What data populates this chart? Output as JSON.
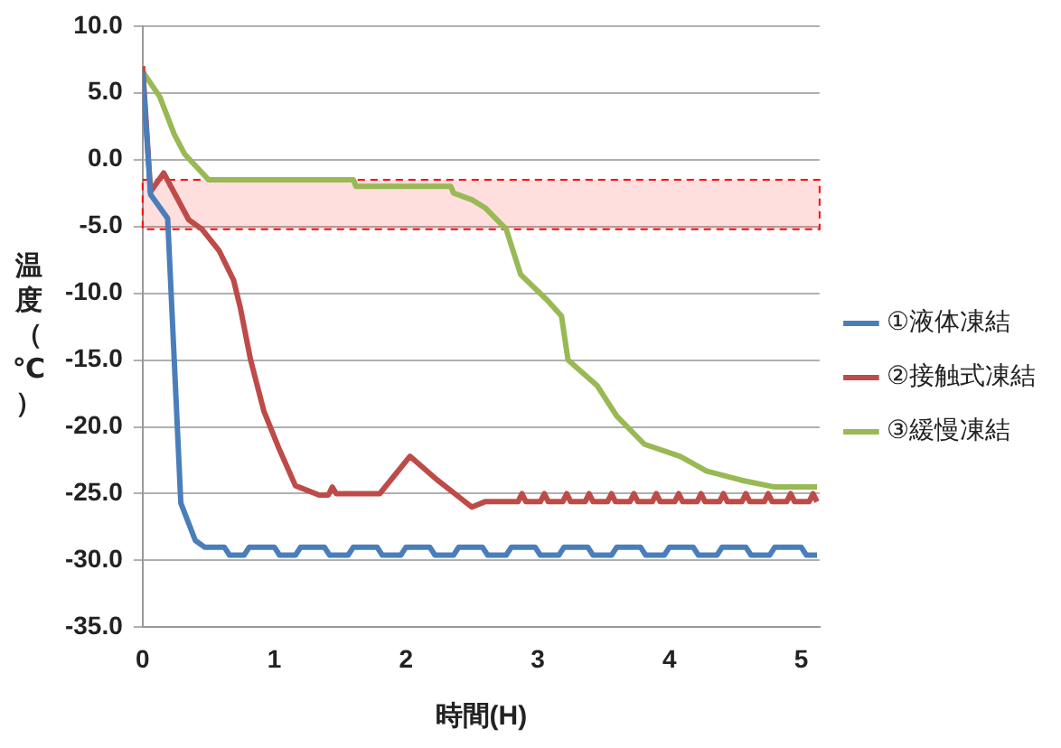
{
  "chart_data": {
    "type": "line",
    "xlabel": "時間(H)",
    "ylabel": "温度（℃）",
    "xlim": [
      0,
      5.14
    ],
    "xticks": [
      0,
      1,
      2,
      3,
      4,
      5
    ],
    "ylim": [
      -35,
      10
    ],
    "yticks": [
      {
        "value": 10,
        "label": "10.0"
      },
      {
        "value": 5,
        "label": "5.0"
      },
      {
        "value": 0,
        "label": "0.0"
      },
      {
        "value": -5,
        "label": "-5.0"
      },
      {
        "value": -10,
        "label": "-10.0"
      },
      {
        "value": -15,
        "label": "-15.0"
      },
      {
        "value": -20,
        "label": "-20.0"
      },
      {
        "value": -25,
        "label": "-25.0"
      },
      {
        "value": -30,
        "label": "-30.0"
      },
      {
        "value": -35,
        "label": "-35.0"
      }
    ],
    "grid": "y",
    "legend": "right",
    "marker": "none",
    "line_style": "solid",
    "bands": [
      {
        "axis": "y",
        "from": -1.5,
        "to": -5.2,
        "color": "#ff0000"
      }
    ],
    "series": [
      {
        "name": "①液体凍結",
        "color": "#4a7ebb",
        "x": [
          0,
          0.06,
          0.19,
          0.24,
          0.29,
          0.4,
          0.47,
          0.62,
          0.66,
          0.77,
          0.81,
          1.0,
          1.04,
          1.16,
          1.2,
          1.38,
          1.42,
          1.56,
          1.6,
          1.78,
          1.82,
          1.96,
          2.0,
          2.18,
          2.22,
          2.36,
          2.4,
          2.58,
          2.62,
          2.76,
          2.8,
          2.98,
          3.02,
          3.16,
          3.2,
          3.38,
          3.42,
          3.56,
          3.6,
          3.78,
          3.82,
          3.96,
          4.0,
          4.18,
          4.22,
          4.36,
          4.4,
          4.58,
          4.62,
          4.76,
          4.8,
          5.0,
          5.04,
          5.12
        ],
        "values": [
          6.5,
          -2.6,
          -4.4,
          -15,
          -25.7,
          -28.5,
          -29,
          -29,
          -29.6,
          -29.6,
          -29,
          -29,
          -29.6,
          -29.6,
          -29,
          -29,
          -29.6,
          -29.6,
          -29,
          -29,
          -29.6,
          -29.6,
          -29,
          -29,
          -29.6,
          -29.6,
          -29,
          -29,
          -29.6,
          -29.6,
          -29,
          -29,
          -29.6,
          -29.6,
          -29,
          -29,
          -29.6,
          -29.6,
          -29,
          -29,
          -29.6,
          -29.6,
          -29,
          -29,
          -29.6,
          -29.6,
          -29,
          -29,
          -29.6,
          -29.6,
          -29,
          -29,
          -29.6,
          -29.6
        ]
      },
      {
        "name": "②接触式凍結",
        "color": "#be4b48",
        "x": [
          0,
          0.06,
          0.16,
          0.35,
          0.45,
          0.58,
          0.69,
          0.74,
          0.82,
          0.92,
          1.03,
          1.16,
          1.34,
          1.41,
          1.44,
          1.47,
          1.8,
          2.03,
          2.24,
          2.5,
          2.6,
          2.85,
          2.88,
          2.91,
          3.02,
          3.05,
          3.08,
          3.19,
          3.22,
          3.25,
          3.36,
          3.39,
          3.42,
          3.53,
          3.56,
          3.59,
          3.7,
          3.73,
          3.76,
          3.87,
          3.9,
          3.93,
          4.04,
          4.07,
          4.1,
          4.21,
          4.24,
          4.27,
          4.38,
          4.41,
          4.44,
          4.55,
          4.58,
          4.61,
          4.72,
          4.75,
          4.78,
          4.89,
          4.92,
          4.95,
          5.06,
          5.09,
          5.12
        ],
        "values": [
          7,
          -2.4,
          -1,
          -4.5,
          -5.2,
          -6.8,
          -9,
          -11,
          -15,
          -18.8,
          -21.5,
          -24.4,
          -25.1,
          -25.1,
          -24.5,
          -25,
          -25,
          -22.2,
          -24,
          -26,
          -25.6,
          -25.6,
          -25,
          -25.6,
          -25.6,
          -25,
          -25.6,
          -25.6,
          -25,
          -25.6,
          -25.6,
          -25,
          -25.6,
          -25.6,
          -25,
          -25.6,
          -25.6,
          -25,
          -25.6,
          -25.6,
          -25,
          -25.6,
          -25.6,
          -25,
          -25.6,
          -25.6,
          -25,
          -25.6,
          -25.6,
          -25,
          -25.6,
          -25.6,
          -25,
          -25.6,
          -25.6,
          -25,
          -25.6,
          -25.6,
          -25,
          -25.6,
          -25.6,
          -25,
          -25.6
        ]
      },
      {
        "name": "③緩慢凍結",
        "color": "#98b954",
        "x": [
          0,
          0.13,
          0.24,
          0.32,
          0.5,
          1.6,
          1.62,
          2.34,
          2.36,
          2.5,
          2.6,
          2.76,
          2.87,
          3.07,
          3.18,
          3.23,
          3.45,
          3.6,
          3.81,
          4.08,
          4.28,
          4.55,
          4.8,
          5.12
        ],
        "values": [
          6.6,
          4.7,
          1.9,
          0.4,
          -1.5,
          -1.5,
          -2,
          -2,
          -2.5,
          -3,
          -3.6,
          -5.2,
          -8.6,
          -10.5,
          -11.7,
          -15,
          -16.9,
          -19.2,
          -21.3,
          -22.2,
          -23.3,
          -24,
          -24.5,
          -24.5
        ]
      }
    ]
  }
}
